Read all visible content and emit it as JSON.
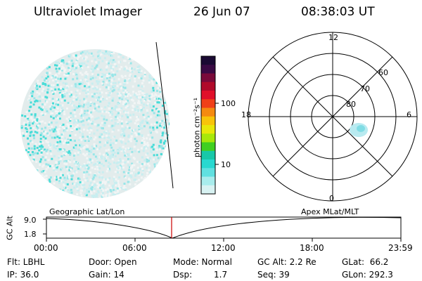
{
  "header": {
    "instrument": "Ultraviolet Imager",
    "date": "26 Jun 07",
    "time": "08:38:03 UT"
  },
  "colorbar": {
    "unit_label": "photon cm⁻²s⁻¹",
    "ticks": [
      "100",
      "10"
    ],
    "colors": [
      "#1a0a33",
      "#3a0a44",
      "#7a0a3a",
      "#b00a2a",
      "#e0102a",
      "#f04018",
      "#f58a10",
      "#f8c40a",
      "#e8e80a",
      "#a8e80a",
      "#40d020",
      "#18c8a8",
      "#28d8d0",
      "#60e0e0",
      "#a8ecec",
      "#d8f2f2"
    ]
  },
  "polar_plot": {
    "mlt_labels": {
      "top": "12",
      "left": "18",
      "right": "6",
      "bottom": "0"
    },
    "lat_labels": [
      "60",
      "70",
      "80"
    ]
  },
  "timeline": {
    "ylabel": "GC Alt",
    "ytick_top": "9.0",
    "ytick_bottom": "1.8",
    "left_title": "Geographic Lat/Lon",
    "right_title": "Apex MLat/MLT",
    "xticks": [
      "00:00",
      "06:00",
      "12:00",
      "18:00",
      "23:59"
    ],
    "current_time_marker": "08:38"
  },
  "info": {
    "filter": "Flt: LBHL",
    "door": "Door: Open",
    "mode": "Mode: Normal",
    "gc_alt": "GC Alt: 2.2 Re",
    "glat": "GLat:  66.2",
    "ip": "IP: 36.0",
    "gain": "Gain: 14",
    "dsp_label": "Dsp:",
    "dsp_value": "1.7",
    "seq": "Seq: 39",
    "glon": "GLon: 292.3"
  }
}
